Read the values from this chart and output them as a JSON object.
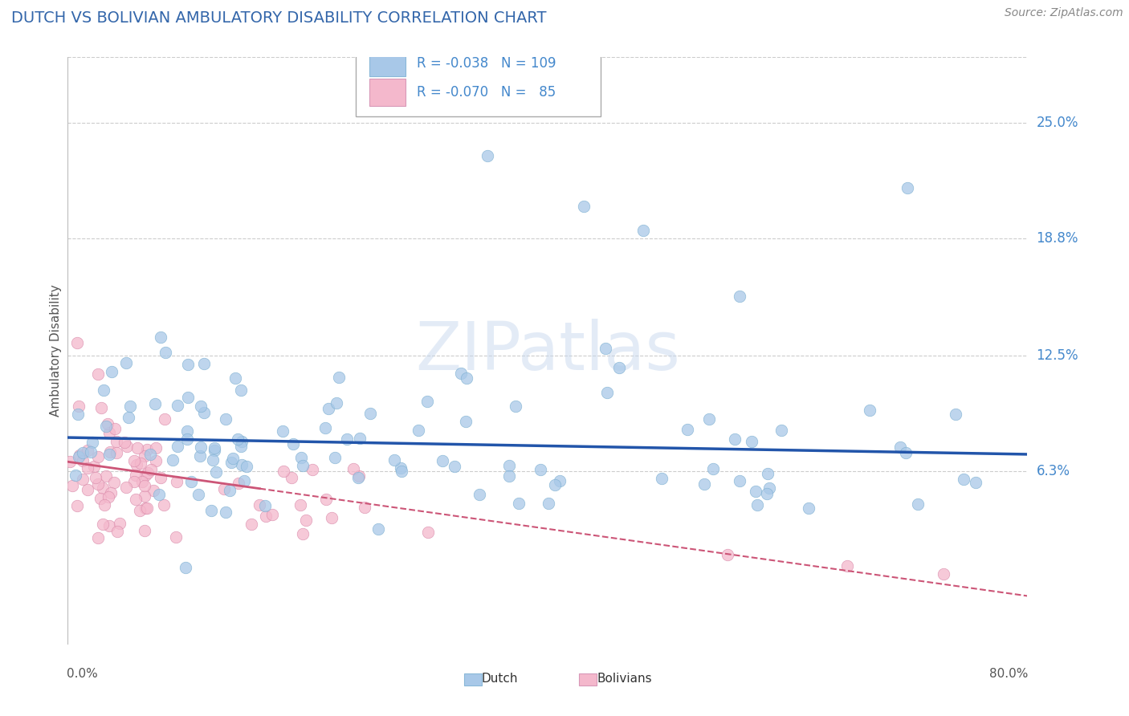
{
  "title": "DUTCH VS BOLIVIAN AMBULATORY DISABILITY CORRELATION CHART",
  "source": "Source: ZipAtlas.com",
  "ylabel": "Ambulatory Disability",
  "ytick_labels": [
    "25.0%",
    "18.8%",
    "12.5%",
    "6.3%"
  ],
  "ytick_values": [
    0.25,
    0.188,
    0.125,
    0.063
  ],
  "xlim": [
    0.0,
    0.8
  ],
  "ylim": [
    -0.03,
    0.285
  ],
  "dutch_color": "#a8c8e8",
  "dutch_edge_color": "#7aaed0",
  "bolivian_color": "#f4b8cc",
  "bolivian_edge_color": "#d888a8",
  "dutch_line_color": "#2255aa",
  "bolivian_line_color": "#cc5577",
  "dutch_R": -0.038,
  "dutch_N": 109,
  "bolivian_R": -0.07,
  "bolivian_N": 85,
  "watermark": "ZIPatlas",
  "background_color": "#ffffff",
  "grid_color": "#cccccc",
  "legend_text_color": "#4488cc",
  "title_color": "#3366aa",
  "source_color": "#888888"
}
